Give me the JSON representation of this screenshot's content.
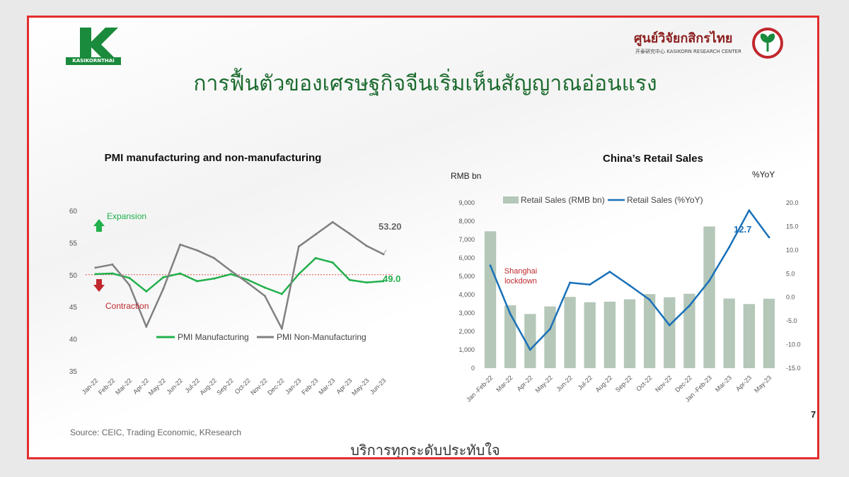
{
  "header": {
    "left_logo_text": "KASIKORNTHAI",
    "research_center_thai": "ศูนย์วิจัยกสิกรไทย",
    "research_center_sub": "开泰研究中心 KASIKORN RESEARCH CENTER",
    "title": "การฟื้นตัวของเศรษฐกิจจีนเริ่มเห็นสัญญาณอ่อนแรง"
  },
  "footer": {
    "source": "Source: CEIC, Trading Economic, KResearch",
    "tagline": "บริการทุกระดับประทับใจ",
    "page_number": "7"
  },
  "colors": {
    "green": "#21b04b",
    "gray": "#808080",
    "bar": "#b4c7b8",
    "blue": "#1a71b8",
    "red": "#c0282d",
    "title_green": "#1d6b2f"
  },
  "chart_data": [
    {
      "type": "line",
      "title": "PMI manufacturing and non-manufacturing",
      "categories": [
        "Jan-22",
        "Feb-22",
        "Mar-22",
        "Apr-22",
        "May-22",
        "Jun-22",
        "Jul-22",
        "Aug-22",
        "Sep-22",
        "Oct-22",
        "Nov-22",
        "Dec-22",
        "Jan-23",
        "Feb-23",
        "Mar-23",
        "Apr-23",
        "May-23",
        "Jun-23"
      ],
      "series": [
        {
          "name": "PMI Manufacturing",
          "color": "#21b04b",
          "values": [
            50.1,
            50.2,
            49.5,
            47.4,
            49.6,
            50.2,
            49.0,
            49.4,
            50.1,
            49.2,
            48.0,
            47.0,
            50.1,
            52.6,
            51.9,
            49.2,
            48.8,
            49.0
          ]
        },
        {
          "name": "PMI Non-Manufacturing",
          "color": "#808080",
          "values": [
            51.1,
            51.6,
            48.4,
            41.9,
            47.8,
            54.7,
            53.8,
            52.6,
            50.6,
            48.7,
            46.7,
            41.6,
            54.4,
            56.3,
            58.2,
            56.4,
            54.5,
            53.2
          ]
        }
      ],
      "ylim": [
        35,
        60
      ],
      "yticks": [
        35,
        40,
        45,
        50,
        55,
        60
      ],
      "reference_line": 50,
      "annotations": {
        "expansion": "Expansion",
        "contraction": "Contraction",
        "last_non_mfg": "53.20",
        "last_mfg": "49.0"
      },
      "legend_position": "bottom-right"
    },
    {
      "type": "bar",
      "title": "China’s Retail Sales",
      "ylabel_left": "RMB bn",
      "ylabel_right": "%YoY",
      "categories": [
        "Jan -Feb-22",
        "Mar-22",
        "Apr-22",
        "May-22",
        "Jun-22",
        "Jul-22",
        "Aug-22",
        "Sep-22",
        "Oct-22",
        "Nov-22",
        "Dec-22",
        "Jan -Feb-23",
        "Mar-23",
        "Apr-23",
        "May-23"
      ],
      "series": [
        {
          "name": "Retail Sales (RMB bn)",
          "type": "bar",
          "axis": "left",
          "color": "#b4c7b8",
          "values": [
            7450,
            3420,
            2950,
            3360,
            3880,
            3590,
            3620,
            3750,
            4030,
            3860,
            4050,
            7710,
            3790,
            3490,
            3780
          ]
        },
        {
          "name": "Retail Sales (%YoY)",
          "type": "line",
          "axis": "right",
          "color": "#1a71b8",
          "values": [
            6.7,
            -3.5,
            -11.1,
            -6.7,
            3.1,
            2.7,
            5.4,
            2.5,
            -0.5,
            -5.9,
            -1.8,
            3.5,
            10.6,
            18.4,
            12.7
          ]
        }
      ],
      "ylim_left": [
        0,
        9000
      ],
      "yticks_left": [
        "0",
        "1,000",
        "2,000",
        "3,000",
        "4,000",
        "5,000",
        "6,000",
        "7,000",
        "8,000",
        "9,000"
      ],
      "ylim_right": [
        -15,
        20
      ],
      "yticks_right": [
        "-15.0",
        "-10.0",
        "-5.0",
        "0.0",
        "5.0",
        "10.0",
        "15.0",
        "20.0"
      ],
      "annotations": {
        "lockdown": "Shanghai\nlockdown",
        "last_yoy": "12.7"
      },
      "legend_position": "top"
    }
  ]
}
